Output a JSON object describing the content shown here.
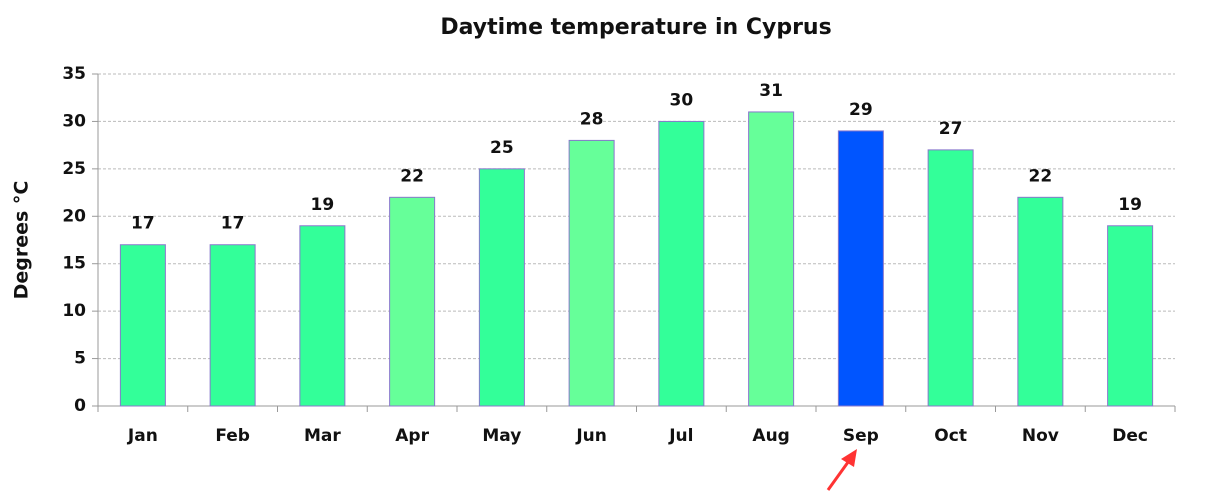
{
  "chart_data": {
    "type": "bar",
    "title": "Daytime temperature in Cyprus",
    "y_label": "Degrees °C",
    "categories": [
      "Jan",
      "Feb",
      "Mar",
      "Apr",
      "May",
      "Jun",
      "Jul",
      "Aug",
      "Sep",
      "Oct",
      "Nov",
      "Dec"
    ],
    "values": [
      17,
      17,
      19,
      22,
      25,
      28,
      30,
      31,
      29,
      27,
      22,
      19
    ],
    "colors": [
      "#33ff99",
      "#33ff99",
      "#33ff99",
      "#66ff99",
      "#33ff99",
      "#66ff99",
      "#33ff99",
      "#66ff99",
      "#0055ff",
      "#33ff99",
      "#33ff99",
      "#33ff99"
    ],
    "ylim": [
      0,
      35
    ],
    "yticks": [
      0,
      5,
      10,
      15,
      20,
      25,
      30,
      35
    ],
    "grid": true
  }
}
